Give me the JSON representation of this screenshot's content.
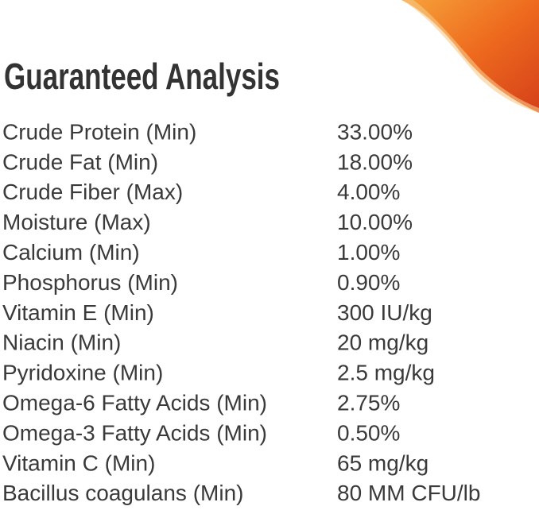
{
  "title": "Guaranteed Analysis",
  "rows": [
    [
      "Crude Protein (Min)",
      "33.00%"
    ],
    [
      "Crude Fat (Min)",
      "18.00%"
    ],
    [
      "Crude Fiber (Max)",
      "4.00%"
    ],
    [
      "Moisture (Max)",
      "10.00%"
    ],
    [
      "Calcium (Min)",
      "1.00%"
    ],
    [
      "Phosphorus (Min)",
      "0.90%"
    ],
    [
      "Vitamin E (Min)",
      "300 IU/kg"
    ],
    [
      "Niacin (Min)",
      "20 mg/kg"
    ],
    [
      "Pyridoxine (Min)",
      "2.5 mg/kg"
    ],
    [
      "Omega-6 Fatty Acids (Min)",
      "2.75%"
    ],
    [
      "Omega-3 Fatty Acids (Min)",
      "0.50%"
    ],
    [
      "Vitamin C (Min)",
      "65 mg/kg"
    ],
    [
      "Bacillus coagulans (Min)",
      "80 MM CFU/lb"
    ]
  ]
}
